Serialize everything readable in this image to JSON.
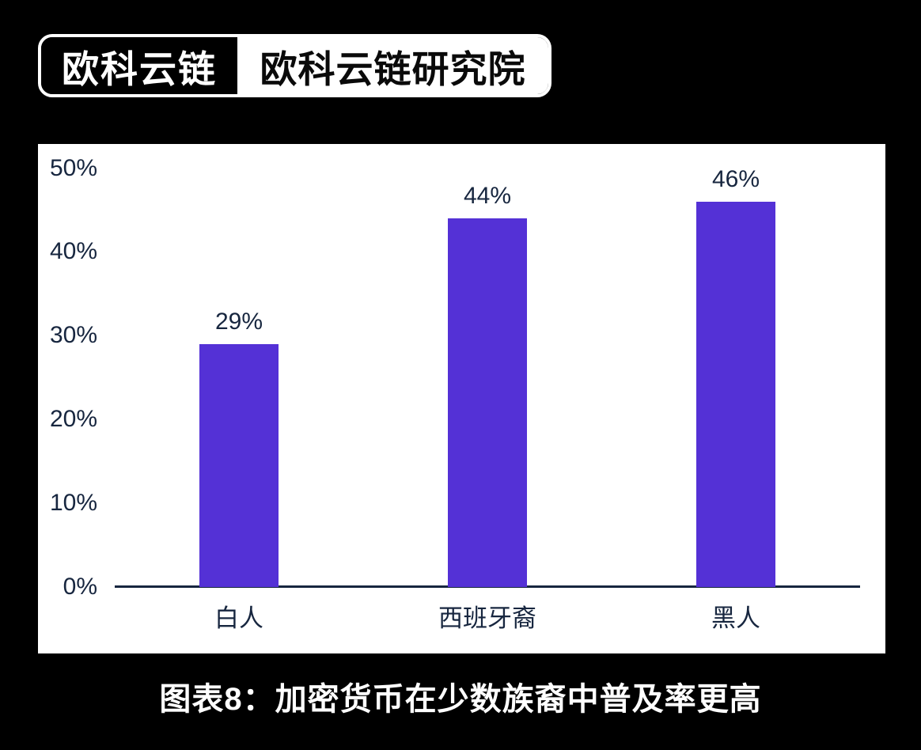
{
  "logo": {
    "brand": "欧科云链",
    "unit": "欧科云链研究院"
  },
  "caption": "图表8：加密货币在少数族裔中普及率更高",
  "colors": {
    "background": "#000000",
    "panel": "#ffffff",
    "bar": "#5431d6",
    "text": "#17263f",
    "axis": "#17263f",
    "caption_text": "#ffffff"
  },
  "chart_data": {
    "type": "bar",
    "categories": [
      "白人",
      "西班牙裔",
      "黑人"
    ],
    "values": [
      29,
      44,
      46
    ],
    "value_labels": [
      "29%",
      "44%",
      "46%"
    ],
    "title": "",
    "xlabel": "",
    "ylabel": "",
    "ylim": [
      0,
      50
    ],
    "ytick_step": 10,
    "ytick_labels": [
      "0%",
      "10%",
      "20%",
      "30%",
      "40%",
      "50%"
    ],
    "grid": false,
    "legend": false,
    "bar_color": "#5431d6"
  }
}
